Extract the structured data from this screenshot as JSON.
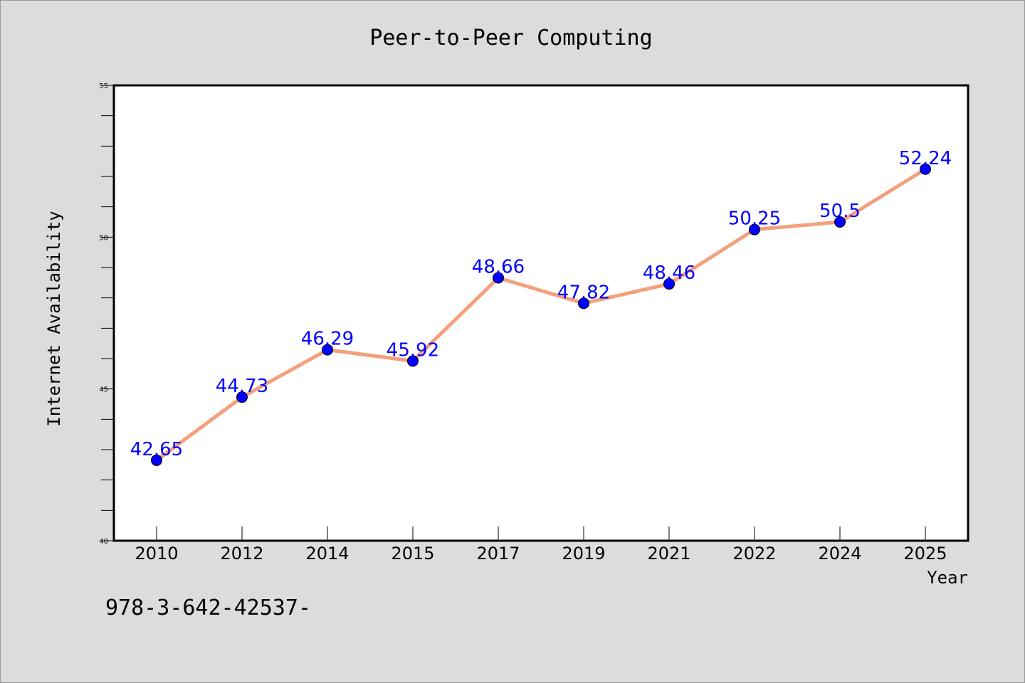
{
  "chart_data": {
    "type": "line",
    "title": "Peer-to-Peer Computing",
    "xlabel": "Year",
    "ylabel": "Internet Availability",
    "categories": [
      "2010",
      "2012",
      "2014",
      "2015",
      "2017",
      "2019",
      "2021",
      "2022",
      "2024",
      "2025"
    ],
    "series": [
      {
        "values": [
          42.65,
          44.73,
          46.29,
          45.92,
          48.66,
          47.82,
          48.46,
          50.25,
          50.5,
          52.24
        ],
        "data_labels": [
          "42.65",
          "44.73",
          "46.29",
          "45.92",
          "48.66",
          "47.82",
          "48.46",
          "50.25",
          "50.5",
          "52.24"
        ]
      }
    ],
    "ylim": [
      40,
      55
    ],
    "y_ticks": [
      "40",
      "45",
      "50",
      "55"
    ],
    "grid": false,
    "legend": "none",
    "colors": {
      "line": "#f4a07c",
      "marker": "#0000ff",
      "data_label": "#0000ff",
      "plot_background": "#ffffff",
      "figure_background": "#dcdcdc"
    }
  },
  "footer": {
    "code": "978-3-642-42537-"
  }
}
